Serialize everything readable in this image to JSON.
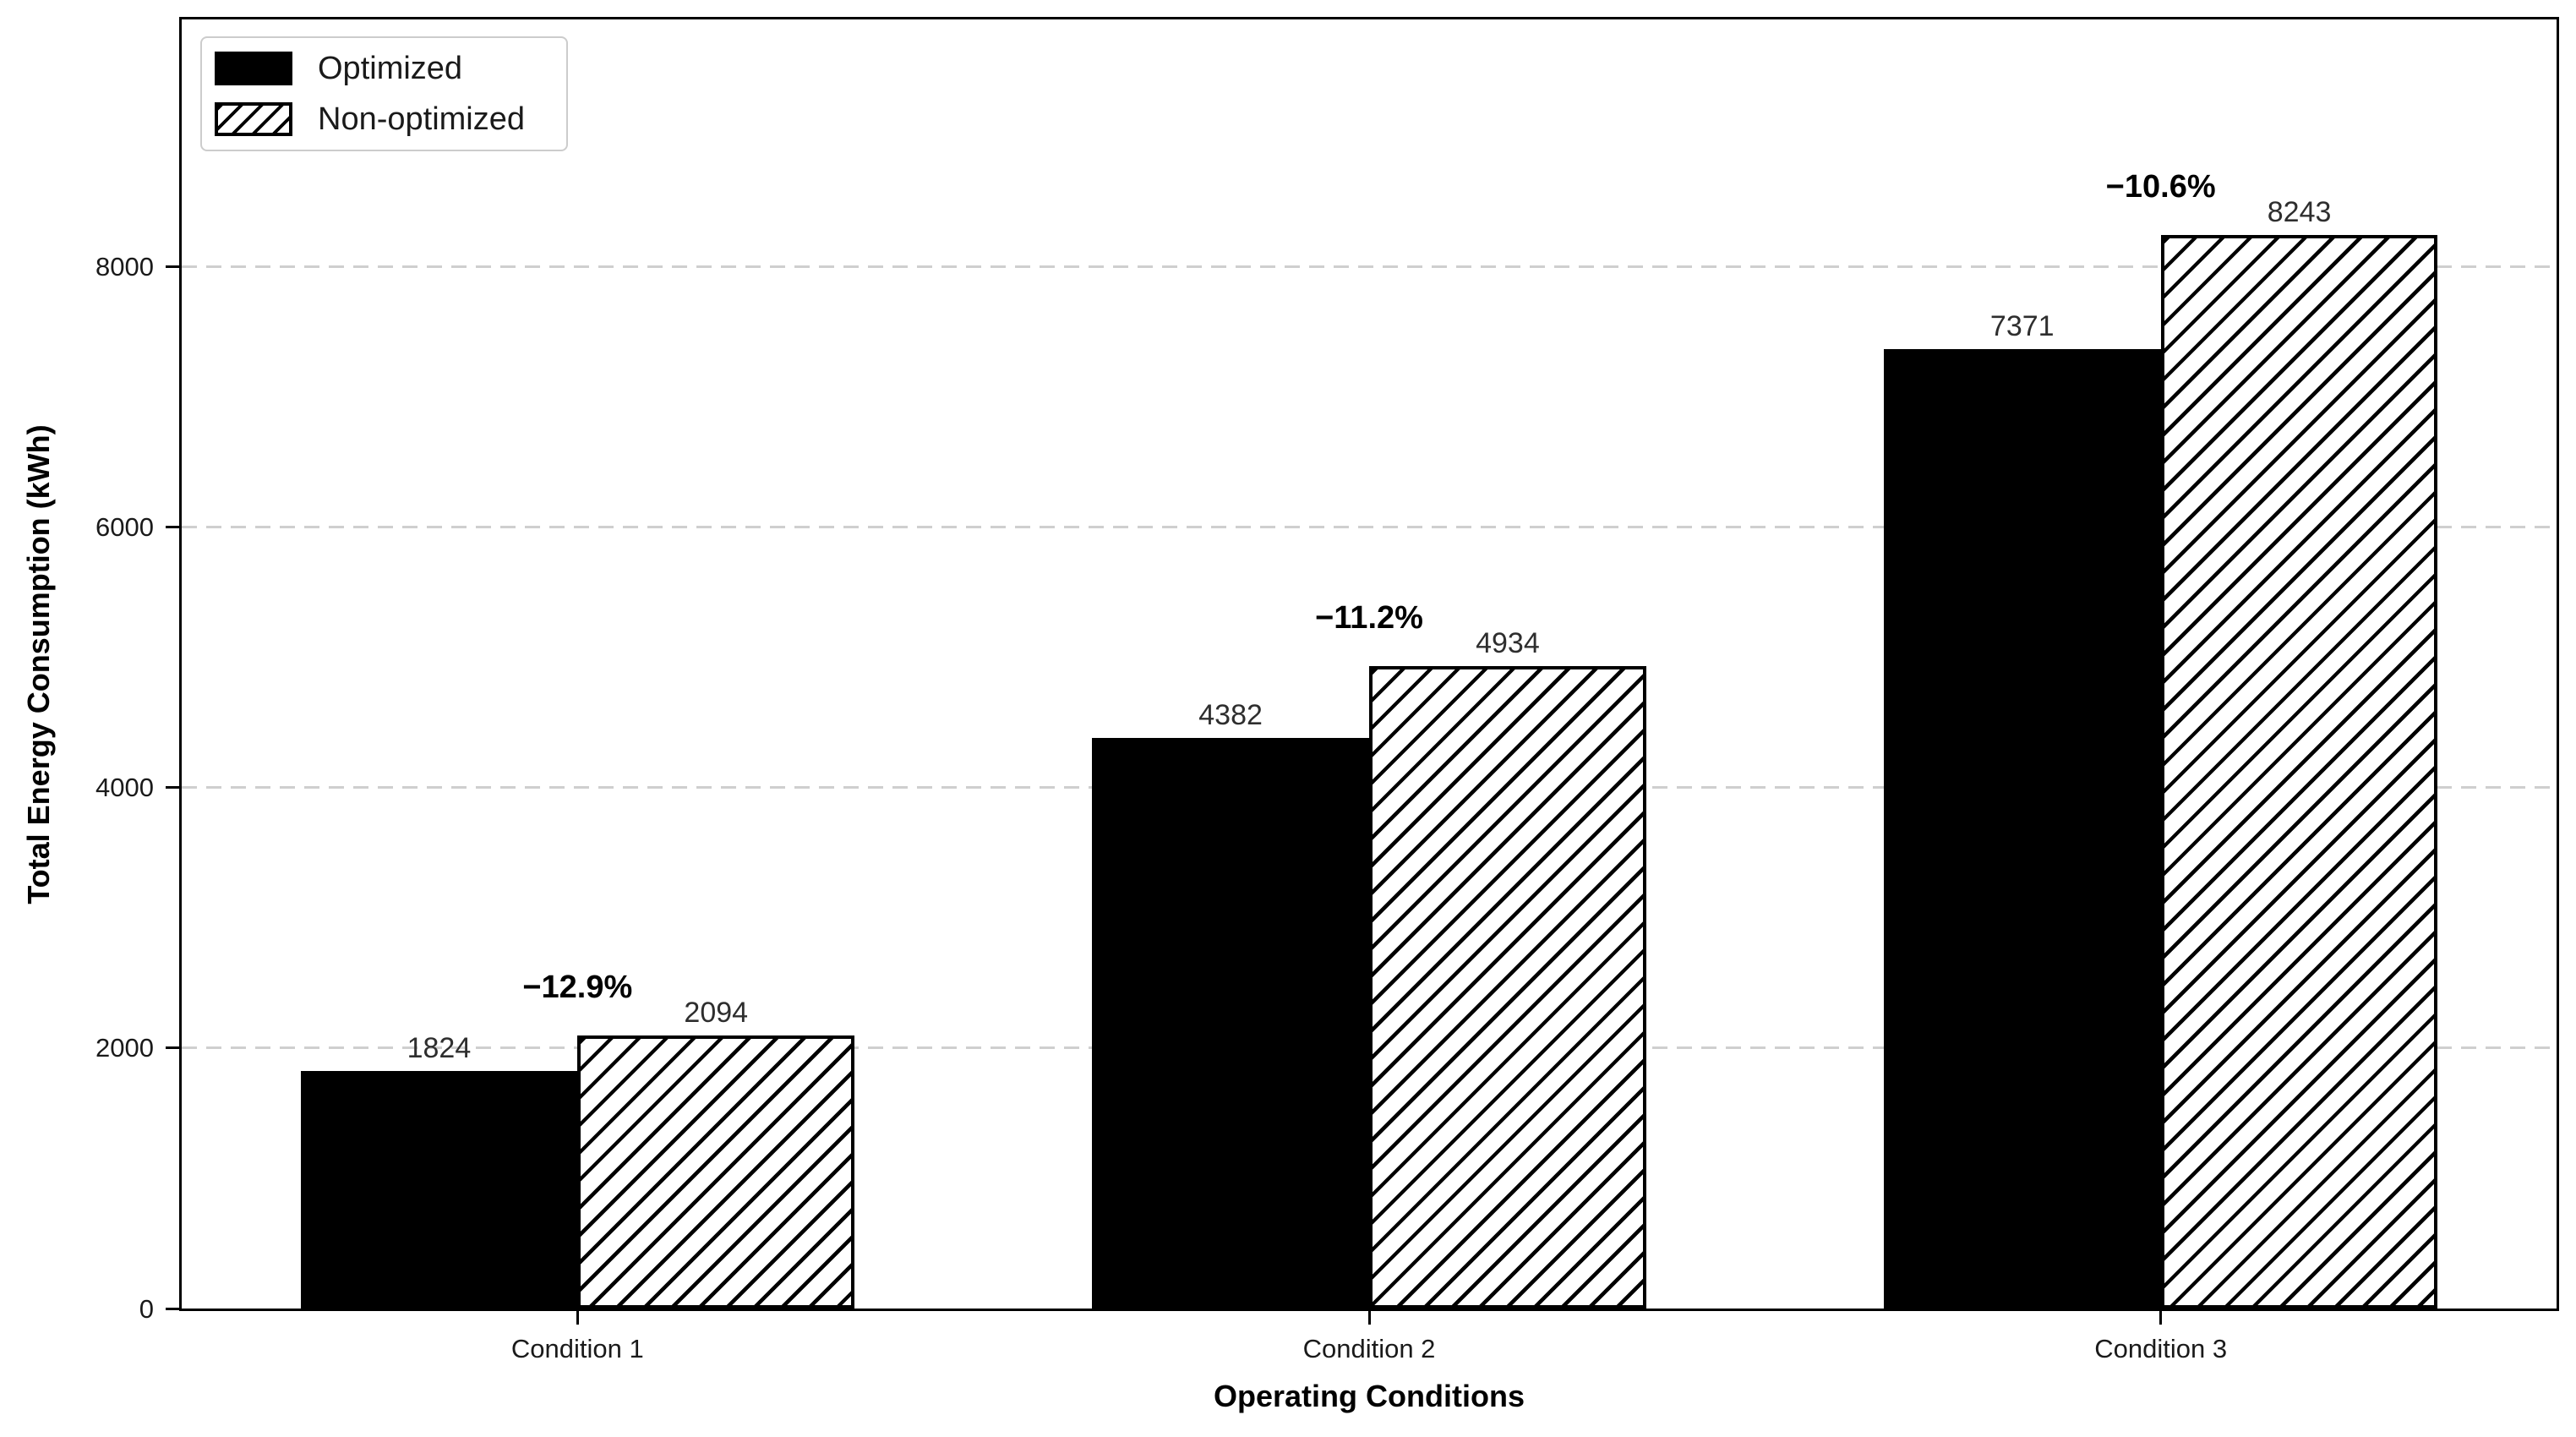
{
  "chart_data": {
    "type": "bar",
    "categories": [
      "Condition 1",
      "Condition 2",
      "Condition 3"
    ],
    "series": [
      {
        "name": "Optimized",
        "fill": "solid",
        "values": [
          1824,
          4382,
          7371
        ]
      },
      {
        "name": "Non-optimized",
        "fill": "hatch",
        "values": [
          2094,
          4934,
          8243
        ]
      }
    ],
    "percent_labels": [
      "−12.9%",
      "−11.2%",
      "−10.6%"
    ],
    "title": "",
    "xlabel": "Operating Conditions",
    "ylabel": "Total Energy Consumption (kWh)",
    "yticks": [
      0,
      2000,
      4000,
      6000,
      8000
    ],
    "ylim": [
      0,
      9900
    ],
    "grid": "horizontal-dashed",
    "legend_position": "upper-left",
    "bar_width_data_units": 0.35,
    "colors": {
      "bar_fill": "#000000",
      "bar_edge": "#000000",
      "background": "#ffffff",
      "gridline": "#cfcfcf",
      "legend_border": "#cccccc",
      "text": "#000000"
    }
  }
}
